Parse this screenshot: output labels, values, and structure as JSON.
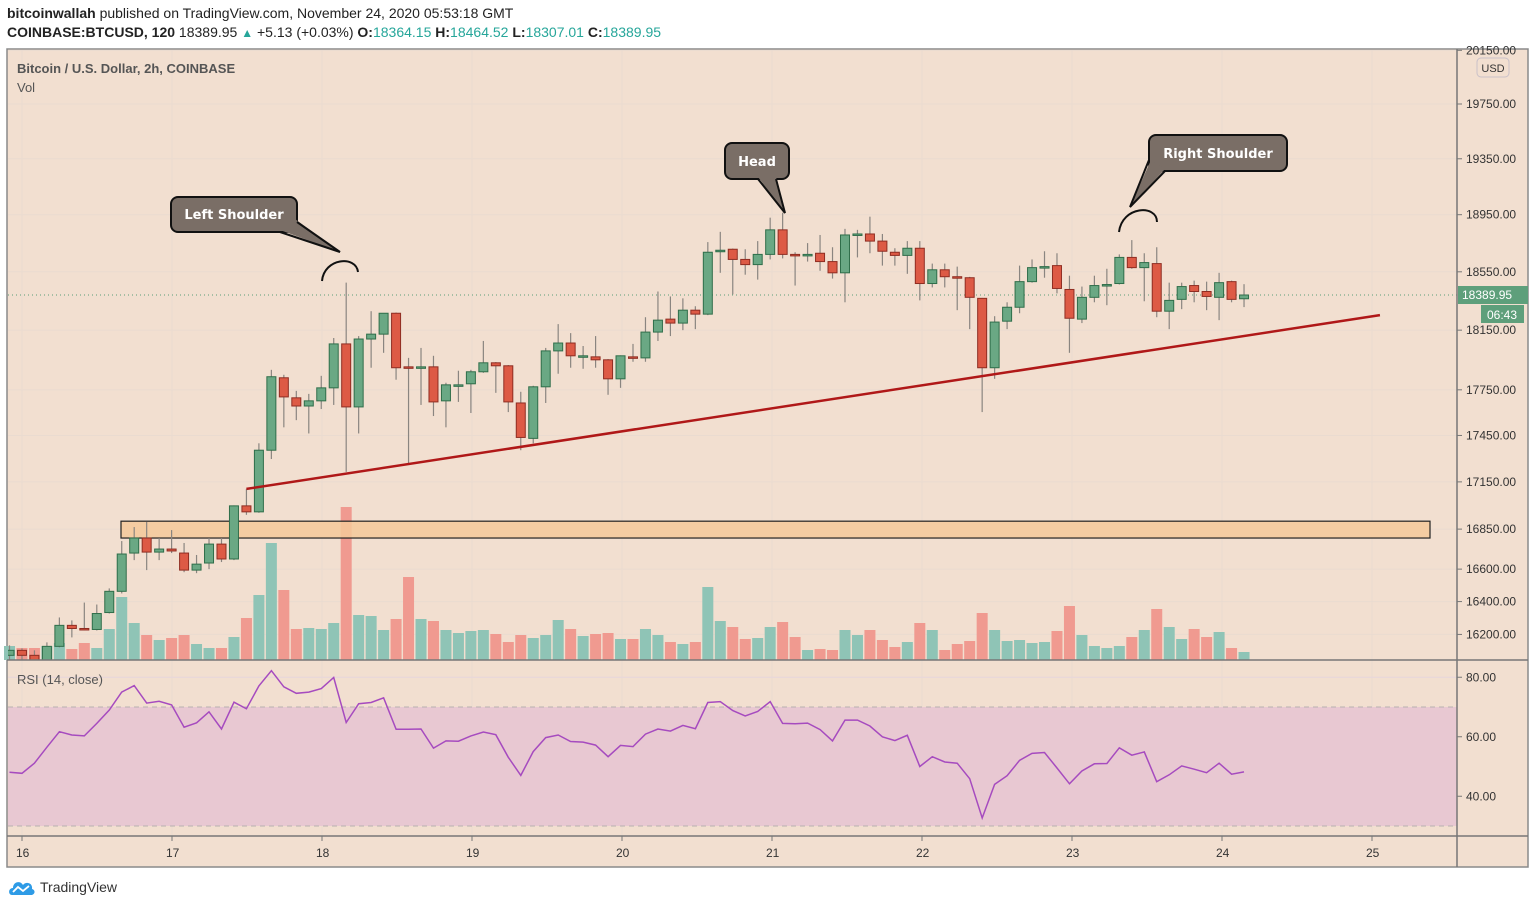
{
  "header": {
    "author": "bitcoinwallah",
    "published": "published on TradingView.com, November 24, 2020 05:53:18 GMT",
    "symbol": "COINBASE:BTCUSD, 120",
    "last": "18389.95",
    "change": "+5.13 (+0.03%)",
    "o_label": "O:",
    "o": "18364.15",
    "h_label": "H:",
    "h": "18464.52",
    "l_label": "L:",
    "l": "18307.01",
    "c_label": "C:",
    "c": "18389.95"
  },
  "pane": {
    "title": "Bitcoin / U.S. Dollar, 2h, COINBASE",
    "vol_label": "Vol",
    "rsi_label": "RSI (14, close)",
    "currency": "USD",
    "last_price_tag": "18389.95",
    "countdown_tag": "06:43"
  },
  "footer": {
    "brand": "TradingView"
  },
  "colors": {
    "bg": "#f2dfd0",
    "up": "#6aa884",
    "down": "#dd5a45",
    "vol_up": "#8fc4b6",
    "vol_down": "#f09a90",
    "rsi": "#a64bbf",
    "rsi_band": "#e8c8d2",
    "trendline": "#b01818",
    "zone": "#f5c99a"
  },
  "chart_data": [
    {
      "type": "candlestick",
      "interval": "2h",
      "price_scale": "log",
      "ylim": [
        16000,
        20200
      ],
      "y_ticks": [
        "20150.00",
        "19750.00",
        "19350.00",
        "18950.00",
        "18550.00",
        "18150.00",
        "17750.00",
        "17450.00",
        "17150.00",
        "16850.00",
        "16600.00",
        "16400.00",
        "16200.00"
      ],
      "x_ticks": [
        "16",
        "17",
        "18",
        "19",
        "20",
        "21",
        "22",
        "23",
        "24",
        "25"
      ],
      "grid": true,
      "times": [
        "11-15 22:00",
        "11-16 00:00",
        "11-16 02:00",
        "11-16 04:00",
        "11-16 06:00",
        "11-16 08:00",
        "11-16 10:00",
        "11-16 12:00",
        "11-16 14:00",
        "11-16 16:00",
        "11-16 18:00",
        "11-16 20:00",
        "11-16 22:00",
        "11-17 00:00",
        "11-17 02:00",
        "11-17 04:00",
        "11-17 06:00",
        "11-17 08:00",
        "11-17 10:00",
        "11-17 12:00",
        "11-17 14:00",
        "11-17 16:00",
        "11-17 18:00",
        "11-17 20:00",
        "11-17 22:00",
        "11-18 00:00",
        "11-18 02:00",
        "11-18 04:00",
        "11-18 06:00",
        "11-18 08:00",
        "11-18 10:00",
        "11-18 12:00",
        "11-18 14:00",
        "11-18 16:00",
        "11-18 18:00",
        "11-18 20:00",
        "11-18 22:00",
        "11-19 00:00",
        "11-19 02:00",
        "11-19 04:00",
        "11-19 06:00",
        "11-19 08:00",
        "11-19 10:00",
        "11-19 12:00",
        "11-19 14:00",
        "11-19 16:00",
        "11-19 18:00",
        "11-19 20:00",
        "11-19 22:00",
        "11-20 00:00",
        "11-20 02:00",
        "11-20 04:00",
        "11-20 06:00",
        "11-20 08:00",
        "11-20 10:00",
        "11-20 12:00",
        "11-20 14:00",
        "11-20 16:00",
        "11-20 18:00",
        "11-20 20:00",
        "11-20 22:00",
        "11-21 00:00",
        "11-21 02:00",
        "11-21 04:00",
        "11-21 06:00",
        "11-21 08:00",
        "11-21 10:00",
        "11-21 12:00",
        "11-21 14:00",
        "11-21 16:00",
        "11-21 18:00",
        "11-21 20:00",
        "11-21 22:00",
        "11-22 00:00",
        "11-22 02:00",
        "11-22 04:00",
        "11-22 06:00",
        "11-22 08:00",
        "11-22 10:00",
        "11-22 12:00",
        "11-22 14:00",
        "11-22 16:00",
        "11-22 18:00",
        "11-22 20:00",
        "11-22 22:00",
        "11-23 00:00",
        "11-23 02:00",
        "11-23 04:00",
        "11-23 06:00",
        "11-23 08:00",
        "11-23 10:00",
        "11-23 12:00",
        "11-23 14:00",
        "11-23 16:00",
        "11-23 18:00",
        "11-23 20:00",
        "11-23 22:00",
        "11-24 00:00",
        "11-24 02:00",
        "11-24 04:00"
      ],
      "ohlc": [
        [
          16074,
          16134,
          16044,
          16104
        ],
        [
          16104,
          16116,
          16032,
          16074
        ],
        [
          16074,
          16104,
          16014,
          16044
        ],
        [
          16044,
          16152,
          16032,
          16128
        ],
        [
          16128,
          16303,
          16122,
          16255
        ],
        [
          16255,
          16285,
          16182,
          16236
        ],
        [
          16236,
          16394,
          16224,
          16230
        ],
        [
          16230,
          16382,
          16224,
          16327
        ],
        [
          16333,
          16481,
          16327,
          16463
        ],
        [
          16463,
          16775,
          16450,
          16694
        ],
        [
          16700,
          16863,
          16656,
          16794
        ],
        [
          16794,
          16895,
          16594,
          16706
        ],
        [
          16706,
          16794,
          16656,
          16725
        ],
        [
          16725,
          16844,
          16700,
          16713
        ],
        [
          16700,
          16763,
          16581,
          16594
        ],
        [
          16594,
          16688,
          16575,
          16631
        ],
        [
          16638,
          16794,
          16600,
          16756
        ],
        [
          16756,
          16794,
          16644,
          16663
        ],
        [
          16663,
          17000,
          16656,
          16997
        ],
        [
          16997,
          17105,
          16940,
          16959
        ],
        [
          16959,
          17399,
          16953,
          17354
        ],
        [
          17354,
          17883,
          17297,
          17837
        ],
        [
          17830,
          17850,
          17503,
          17703
        ],
        [
          17697,
          17743,
          17550,
          17643
        ],
        [
          17643,
          17723,
          17463,
          17677
        ],
        [
          17677,
          17843,
          17623,
          17763
        ],
        [
          17763,
          18097,
          17650,
          18057
        ],
        [
          18057,
          18475,
          17214,
          17637
        ],
        [
          17637,
          18110,
          17463,
          18090
        ],
        [
          18090,
          18279,
          17897,
          18123
        ],
        [
          18123,
          18265,
          17997,
          18265
        ],
        [
          18265,
          18270,
          17817,
          17897
        ],
        [
          17903,
          17963,
          17259,
          17897
        ],
        [
          17897,
          18030,
          17650,
          17903
        ],
        [
          17903,
          17977,
          17577,
          17670
        ],
        [
          17677,
          17797,
          17503,
          17783
        ],
        [
          17777,
          17877,
          17670,
          17783
        ],
        [
          17790,
          17883,
          17597,
          17870
        ],
        [
          17870,
          18077,
          17863,
          17930
        ],
        [
          17930,
          17935,
          17730,
          17910
        ],
        [
          17910,
          17915,
          17603,
          17670
        ],
        [
          17663,
          17737,
          17354,
          17437
        ],
        [
          17431,
          17777,
          17399,
          17770
        ],
        [
          17770,
          18030,
          17663,
          18010
        ],
        [
          18010,
          18191,
          17857,
          18063
        ],
        [
          18063,
          18130,
          17897,
          17977
        ],
        [
          17970,
          18043,
          17890,
          17977
        ],
        [
          17970,
          18110,
          17897,
          17950
        ],
        [
          17950,
          17955,
          17717,
          17823
        ],
        [
          17823,
          17980,
          17763,
          17977
        ],
        [
          17970,
          18057,
          17937,
          17963
        ],
        [
          17963,
          18238,
          17937,
          18137
        ],
        [
          18137,
          18414,
          18077,
          18218
        ],
        [
          18225,
          18380,
          18110,
          18198
        ],
        [
          18198,
          18367,
          18150,
          18286
        ],
        [
          18286,
          18313,
          18157,
          18259
        ],
        [
          18259,
          18757,
          18252,
          18686
        ],
        [
          18693,
          18829,
          18543,
          18700
        ],
        [
          18707,
          18712,
          18394,
          18636
        ],
        [
          18636,
          18707,
          18530,
          18600
        ],
        [
          18600,
          18764,
          18496,
          18671
        ],
        [
          18671,
          18929,
          18636,
          18843
        ],
        [
          18843,
          18964,
          18643,
          18671
        ],
        [
          18671,
          18686,
          18455,
          18664
        ],
        [
          18664,
          18750,
          18621,
          18671
        ],
        [
          18679,
          18807,
          18557,
          18621
        ],
        [
          18621,
          18721,
          18503,
          18543
        ],
        [
          18543,
          18850,
          18340,
          18807
        ],
        [
          18807,
          18843,
          18650,
          18814
        ],
        [
          18814,
          18936,
          18679,
          18764
        ],
        [
          18764,
          18814,
          18593,
          18693
        ],
        [
          18686,
          18714,
          18593,
          18664
        ],
        [
          18664,
          18764,
          18536,
          18714
        ],
        [
          18714,
          18764,
          18353,
          18469
        ],
        [
          18469,
          18607,
          18442,
          18564
        ],
        [
          18564,
          18607,
          18442,
          18516
        ],
        [
          18516,
          18586,
          18286,
          18509
        ],
        [
          18509,
          18515,
          18157,
          18374
        ],
        [
          18367,
          18370,
          17603,
          17897
        ],
        [
          17897,
          18245,
          17823,
          18205
        ],
        [
          18211,
          18340,
          18157,
          18306
        ],
        [
          18306,
          18593,
          18265,
          18482
        ],
        [
          18482,
          18636,
          18475,
          18579
        ],
        [
          18579,
          18693,
          18509,
          18586
        ],
        [
          18593,
          18679,
          18401,
          18435
        ],
        [
          18428,
          18523,
          17997,
          18231
        ],
        [
          18225,
          18448,
          18198,
          18374
        ],
        [
          18374,
          18523,
          18340,
          18455
        ],
        [
          18455,
          18571,
          18320,
          18462
        ],
        [
          18469,
          18671,
          18462,
          18650
        ],
        [
          18650,
          18771,
          18571,
          18579
        ],
        [
          18579,
          18679,
          18347,
          18614
        ],
        [
          18607,
          18721,
          18238,
          18279
        ],
        [
          18279,
          18475,
          18157,
          18353
        ],
        [
          18360,
          18475,
          18293,
          18448
        ],
        [
          18455,
          18489,
          18340,
          18414
        ],
        [
          18414,
          18482,
          18286,
          18380
        ],
        [
          18374,
          18543,
          18218,
          18475
        ],
        [
          18482,
          18489,
          18340,
          18360
        ],
        [
          18364.15,
          18464.52,
          18307.01,
          18389.95
        ]
      ],
      "volume_relative": [
        14,
        12,
        12,
        14,
        17,
        11,
        17,
        12,
        31,
        63,
        37,
        25,
        20,
        22,
        25,
        16,
        12,
        12,
        23,
        42,
        65,
        117,
        70,
        31,
        32,
        31,
        37,
        153,
        45,
        44,
        30,
        41,
        83,
        41,
        39,
        30,
        27,
        29,
        30,
        26,
        18,
        25,
        22,
        25,
        40,
        31,
        24,
        26,
        27,
        21,
        21,
        31,
        25,
        18,
        16,
        18,
        73,
        39,
        33,
        21,
        22,
        33,
        38,
        23,
        10,
        11,
        10,
        30,
        25,
        30,
        20,
        13,
        18,
        37,
        30,
        10,
        16,
        19,
        47,
        30,
        19,
        20,
        17,
        18,
        29,
        54,
        25,
        14,
        12,
        14,
        23,
        30,
        51,
        33,
        21,
        31,
        23,
        28,
        12,
        8
      ],
      "annotations": {
        "left_shoulder": "Left Shoulder",
        "head": "Head",
        "right_shoulder": "Right Shoulder",
        "trendline": {
          "start_time": "11-17 12:00",
          "start_price": 17105,
          "end_time": "11-25 02:00",
          "end_price": 18252
        },
        "zone": {
          "low": 16794,
          "high": 16900
        }
      }
    },
    {
      "type": "line",
      "title": "RSI (14, close)",
      "ylim": [
        25,
        85
      ],
      "y_ticks": [
        "80.00",
        "60.00",
        "40.00"
      ],
      "bands": [
        30,
        70
      ],
      "values": [
        48.1,
        47.7,
        51.1,
        56.5,
        61.7,
        60.6,
        60.3,
        64.5,
        69.0,
        75.0,
        77.2,
        71.3,
        71.9,
        70.7,
        63.2,
        64.7,
        68.4,
        62.6,
        71.6,
        69.4,
        77.1,
        82.2,
        76.8,
        74.6,
        75.0,
        76.2,
        79.9,
        64.8,
        71.1,
        71.5,
        73.1,
        62.5,
        62.5,
        62.6,
        56.2,
        58.6,
        58.5,
        60.3,
        61.6,
        60.7,
        53.1,
        47.0,
        55.0,
        59.7,
        60.6,
        58.4,
        58.2,
        57.2,
        53.3,
        57.1,
        56.7,
        60.9,
        62.6,
        61.9,
        63.8,
        62.7,
        71.5,
        71.8,
        68.8,
        67.0,
        68.5,
        71.8,
        64.5,
        64.4,
        64.6,
        62.4,
        58.6,
        65.6,
        65.6,
        63.6,
        60.0,
        58.7,
        60.5,
        50.0,
        53.3,
        51.5,
        51.1,
        45.9,
        32.7,
        44.0,
        46.9,
        52.1,
        54.4,
        54.7,
        49.5,
        44.2,
        48.5,
        50.9,
        51.0,
        56.3,
        53.8,
        54.9,
        44.9,
        47.2,
        50.2,
        49.1,
        47.9,
        51.1,
        47.4,
        48.2
      ]
    }
  ]
}
